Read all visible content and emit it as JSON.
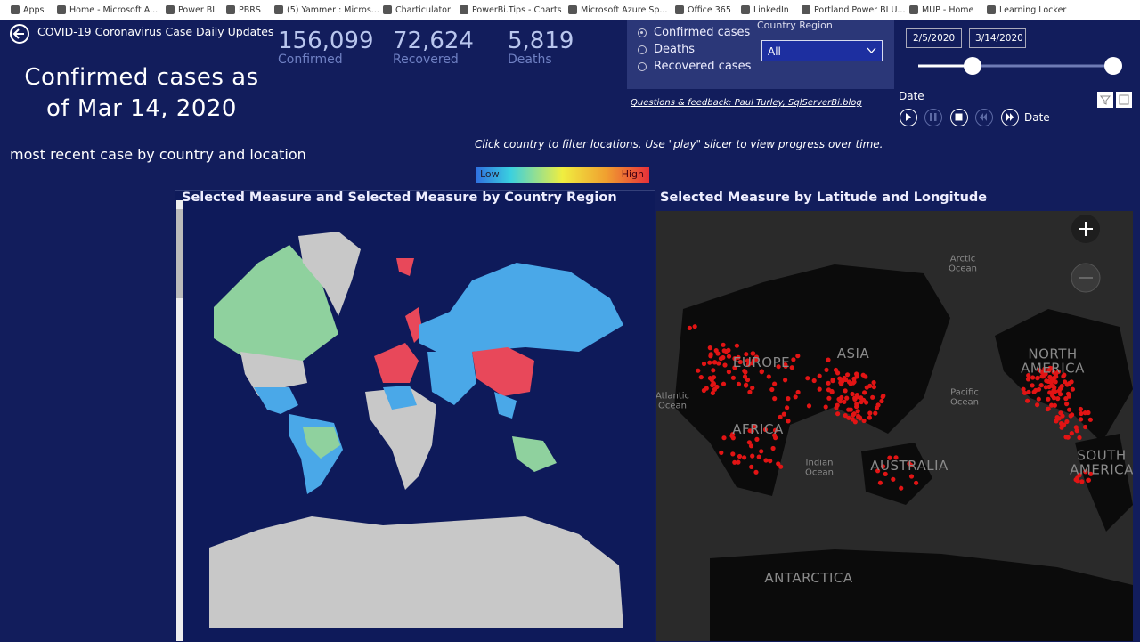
{
  "bookmarks": [
    "Apps",
    "Home - Microsoft A...",
    "Power BI",
    "PBRS",
    "(5) Yammer : Micros...",
    "Charticulator",
    "PowerBi.Tips - Charts",
    "Microsoft Azure Sp...",
    "Office 365",
    "LinkedIn",
    "Portland Power BI U...",
    "MUP - Home",
    "Learning Locker"
  ],
  "header": {
    "title": "COVID-19 Coronavirus Case Daily Updates"
  },
  "kpis": [
    {
      "value": "156,099",
      "label": "Confirmed"
    },
    {
      "value": "72,624",
      "label": "Recovered"
    },
    {
      "value": "5,819",
      "label": "Deaths"
    }
  ],
  "headline": "Confirmed cases as of Mar 14, 2020",
  "subtitle": "most recent case by country and location",
  "measure_options": [
    "Confirmed cases",
    "Deaths",
    "Recovered cases"
  ],
  "country_slicer": {
    "label": "Country Region",
    "value": "All"
  },
  "date_slicer": {
    "start": "2/5/2020",
    "end": "3/14/2020"
  },
  "feedback": "Questions & feedback: Paul Turley, SqlServerBi.blog",
  "play_axis": {
    "title": "Date",
    "field": "Date"
  },
  "instruction": "Click country to filter locations. Use \"play\" slicer to view progress over time.",
  "legend": {
    "low": "Low",
    "high": "High"
  },
  "country_map": {
    "title": "Selected Measure and Selected Measure by Country Region"
  },
  "location_map": {
    "title": "Selected Measure by Latitude and Longitude",
    "labels": [
      "Arctic Ocean",
      "EUROPE",
      "ASIA",
      "NORTH AMERICA",
      "Atlantic Ocean",
      "Pacific Ocean",
      "AFRICA",
      "Indian Ocean",
      "AUSTRALIA",
      "SOUTH AMERICA",
      "ANTARCTICA"
    ]
  }
}
